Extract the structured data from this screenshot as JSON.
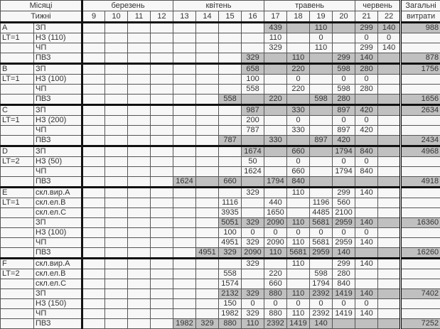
{
  "header": {
    "months_label": "Місяці",
    "weeks_label": "Тижні",
    "months": [
      {
        "label": "березень",
        "span": 4
      },
      {
        "label": "квітень",
        "span": 4
      },
      {
        "label": "травень",
        "span": 4
      },
      {
        "label": "червень",
        "span": 2
      }
    ],
    "weeks": [
      "9",
      "10",
      "11",
      "12",
      "13",
      "14",
      "15",
      "16",
      "17",
      "18",
      "19",
      "20",
      "21",
      "22"
    ],
    "total_label": "Загальні",
    "total_label2": "витрати"
  },
  "colors": {
    "shaded": "#c0c0c0",
    "cell": "#f7f7f7"
  },
  "groups": [
    {
      "name": "A",
      "lt": "LT=1",
      "rows": [
        {
          "label": "ЗП",
          "shaded": true,
          "values": [
            null,
            null,
            null,
            null,
            null,
            null,
            null,
            null,
            "439",
            null,
            "110",
            null,
            "299",
            "140"
          ],
          "total": "988"
        },
        {
          "label": "НЗ (110)",
          "shaded": false,
          "values": [
            null,
            null,
            null,
            null,
            null,
            null,
            null,
            null,
            "110",
            null,
            "0",
            null,
            "0",
            "0"
          ],
          "total": null
        },
        {
          "label": "ЧП",
          "shaded": false,
          "values": [
            null,
            null,
            null,
            null,
            null,
            null,
            null,
            null,
            "329",
            null,
            "110",
            null,
            "299",
            "140"
          ],
          "total": null
        },
        {
          "label": "ПВЗ",
          "shaded": true,
          "values": [
            null,
            null,
            null,
            null,
            null,
            null,
            null,
            "329",
            null,
            "110",
            null,
            "299",
            "140",
            null
          ],
          "total": "878"
        }
      ]
    },
    {
      "name": "B",
      "lt": "LT=1",
      "rows": [
        {
          "label": "ЗП",
          "shaded": true,
          "values": [
            null,
            null,
            null,
            null,
            null,
            null,
            null,
            "658",
            null,
            "220",
            null,
            "598",
            "280",
            null
          ],
          "total": "1756"
        },
        {
          "label": "НЗ (100)",
          "shaded": false,
          "values": [
            null,
            null,
            null,
            null,
            null,
            null,
            null,
            "100",
            null,
            "0",
            null,
            "0",
            "0",
            null
          ],
          "total": null
        },
        {
          "label": "ЧП",
          "shaded": false,
          "values": [
            null,
            null,
            null,
            null,
            null,
            null,
            null,
            "558",
            null,
            "220",
            null,
            "598",
            "280",
            null
          ],
          "total": null
        },
        {
          "label": "ПВЗ",
          "shaded": true,
          "values": [
            null,
            null,
            null,
            null,
            null,
            null,
            "558",
            null,
            "220",
            null,
            "598",
            "280",
            null,
            null
          ],
          "total": "1656"
        }
      ]
    },
    {
      "name": "C",
      "lt": "LT=1",
      "rows": [
        {
          "label": "ЗП",
          "shaded": true,
          "values": [
            null,
            null,
            null,
            null,
            null,
            null,
            null,
            "987",
            null,
            "330",
            null,
            "897",
            "420",
            null
          ],
          "total": "2634"
        },
        {
          "label": "НЗ (200)",
          "shaded": false,
          "values": [
            null,
            null,
            null,
            null,
            null,
            null,
            null,
            "200",
            null,
            "0",
            null,
            "0",
            "0",
            null
          ],
          "total": null
        },
        {
          "label": "ЧП",
          "shaded": false,
          "values": [
            null,
            null,
            null,
            null,
            null,
            null,
            null,
            "787",
            null,
            "330",
            null,
            "897",
            "420",
            null
          ],
          "total": null
        },
        {
          "label": "ПВЗ",
          "shaded": true,
          "values": [
            null,
            null,
            null,
            null,
            null,
            null,
            "787",
            null,
            "330",
            null,
            "897",
            "420",
            null,
            null
          ],
          "total": "2434"
        }
      ]
    },
    {
      "name": "D",
      "lt": "LT=2",
      "rows": [
        {
          "label": "ЗП",
          "shaded": true,
          "values": [
            null,
            null,
            null,
            null,
            null,
            null,
            null,
            "1674",
            null,
            "660",
            null,
            "1794",
            "840",
            null
          ],
          "total": "4968"
        },
        {
          "label": "НЗ (50)",
          "shaded": false,
          "values": [
            null,
            null,
            null,
            null,
            null,
            null,
            null,
            "50",
            null,
            "0",
            null,
            "0",
            "0",
            null
          ],
          "total": null
        },
        {
          "label": "ЧП",
          "shaded": false,
          "values": [
            null,
            null,
            null,
            null,
            null,
            null,
            null,
            "1624",
            null,
            "660",
            null,
            "1794",
            "840",
            null
          ],
          "total": null
        },
        {
          "label": "ПВЗ",
          "shaded": true,
          "values": [
            null,
            null,
            null,
            null,
            "1624",
            null,
            "660",
            null,
            "1794",
            "840",
            null,
            null,
            null,
            null
          ],
          "total": "4918"
        }
      ]
    },
    {
      "name": "E",
      "lt": "LT=1",
      "rows": [
        {
          "label": "скл.вир.А",
          "shaded": false,
          "values": [
            null,
            null,
            null,
            null,
            null,
            null,
            null,
            "329",
            null,
            "110",
            null,
            "299",
            "140",
            null
          ],
          "total": null
        },
        {
          "label": "скл.ел.В",
          "shaded": false,
          "values": [
            null,
            null,
            null,
            null,
            null,
            null,
            "1116",
            null,
            "440",
            null,
            "1196",
            "560",
            null,
            null
          ],
          "total": null
        },
        {
          "label": "скл.ел.С",
          "shaded": false,
          "values": [
            null,
            null,
            null,
            null,
            null,
            null,
            "3935",
            null,
            "1650",
            null,
            "4485",
            "2100",
            null,
            null
          ],
          "total": null
        },
        {
          "label": "ЗП",
          "shaded": true,
          "values": [
            null,
            null,
            null,
            null,
            null,
            null,
            "5051",
            "329",
            "2090",
            "110",
            "5681",
            "2959",
            "140",
            null
          ],
          "total": "16360"
        },
        {
          "label": "НЗ (100)",
          "shaded": false,
          "values": [
            null,
            null,
            null,
            null,
            null,
            null,
            "100",
            "0",
            "0",
            "0",
            "0",
            "0",
            "0",
            null
          ],
          "total": null
        },
        {
          "label": "ЧП",
          "shaded": false,
          "values": [
            null,
            null,
            null,
            null,
            null,
            null,
            "4951",
            "329",
            "2090",
            "110",
            "5681",
            "2959",
            "140",
            null
          ],
          "total": null
        },
        {
          "label": "ПВЗ",
          "shaded": true,
          "values": [
            null,
            null,
            null,
            null,
            null,
            "4951",
            "329",
            "2090",
            "110",
            "5681",
            "2959",
            "140",
            null,
            null
          ],
          "total": "16260"
        }
      ]
    },
    {
      "name": "F",
      "lt": "LT=2",
      "rows": [
        {
          "label": "скл.вир.А",
          "shaded": false,
          "values": [
            null,
            null,
            null,
            null,
            null,
            null,
            null,
            "329",
            null,
            "110",
            null,
            "299",
            "140",
            null
          ],
          "total": null
        },
        {
          "label": "скл.ел.В",
          "shaded": false,
          "values": [
            null,
            null,
            null,
            null,
            null,
            null,
            "558",
            null,
            "220",
            null,
            "598",
            "280",
            null,
            null
          ],
          "total": null
        },
        {
          "label": "скл.ел.С",
          "shaded": false,
          "values": [
            null,
            null,
            null,
            null,
            null,
            null,
            "1574",
            null,
            "660",
            null,
            "1794",
            "840",
            null,
            null
          ],
          "total": null
        },
        {
          "label": "ЗП",
          "shaded": true,
          "values": [
            null,
            null,
            null,
            null,
            null,
            null,
            "2132",
            "329",
            "880",
            "110",
            "2392",
            "1419",
            "140",
            null
          ],
          "total": "7402"
        },
        {
          "label": "НЗ (150)",
          "shaded": false,
          "values": [
            null,
            null,
            null,
            null,
            null,
            null,
            "150",
            "0",
            "0",
            "0",
            "0",
            "0",
            "0",
            null
          ],
          "total": null
        },
        {
          "label": "ЧП",
          "shaded": false,
          "values": [
            null,
            null,
            null,
            null,
            null,
            null,
            "1982",
            "329",
            "880",
            "110",
            "2392",
            "1419",
            "140",
            null
          ],
          "total": null
        },
        {
          "label": "ПВЗ",
          "shaded": true,
          "values": [
            null,
            null,
            null,
            null,
            "1982",
            "329",
            "880",
            "110",
            "2392",
            "1419",
            "140",
            null,
            null,
            null
          ],
          "total": "7252"
        }
      ]
    }
  ]
}
